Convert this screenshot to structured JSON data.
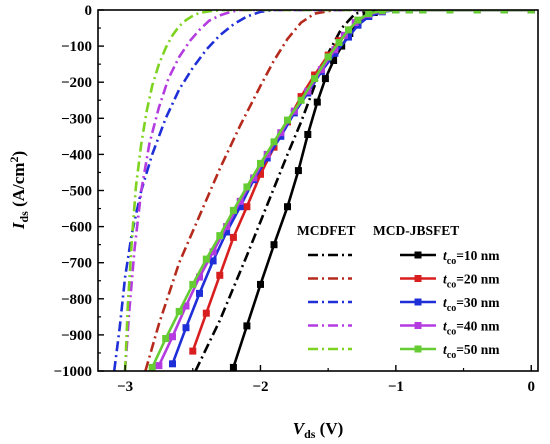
{
  "chart_data": {
    "type": "line",
    "xlabel": {
      "main": "V",
      "sub": "ds",
      "tail": " (V)"
    },
    "ylabel": {
      "main": "I",
      "sub": "ds",
      "tail": " (A/cm",
      "sup": "2",
      "close": ")"
    },
    "xlim": [
      -3.2,
      0.05
    ],
    "ylim": [
      -1000,
      0
    ],
    "xticks": [
      -3,
      -2,
      -1,
      0
    ],
    "xtick_labels": [
      "−3",
      "−2",
      "−1",
      "0"
    ],
    "yticks": [
      0,
      -100,
      -200,
      -300,
      -400,
      -500,
      -600,
      -700,
      -800,
      -900,
      -1000
    ],
    "ytick_labels": [
      "0",
      "−100",
      "−200",
      "−300",
      "−400",
      "−500",
      "−600",
      "−700",
      "−800",
      "−900",
      "−1000"
    ],
    "legend": {
      "col1_header": "MCDFET",
      "col2_header": "MCD-JBSFET",
      "placement": "bottom-right",
      "entries": [
        {
          "t": "t",
          "sub": "co",
          "rest": "=10 nm"
        },
        {
          "t": "t",
          "sub": "co",
          "rest": "=20 nm"
        },
        {
          "t": "t",
          "sub": "co",
          "rest": "=30 nm"
        },
        {
          "t": "t",
          "sub": "co",
          "rest": "=40 nm"
        },
        {
          "t": "t",
          "sub": "co",
          "rest": "=50 nm"
        }
      ]
    },
    "series": [
      {
        "group": "MCDFET",
        "style": "dashdot",
        "color": "#000000",
        "x": [
          -2.48,
          -2.3,
          -2.1,
          -1.95,
          -1.8,
          -1.7,
          -1.6,
          -1.5,
          -1.4,
          -1.3,
          -1.2,
          -1.1,
          0.0
        ],
        "y": [
          -1000,
          -860,
          -680,
          -540,
          -400,
          -310,
          -210,
          -120,
          -50,
          -10,
          -2,
          0,
          0
        ]
      },
      {
        "group": "MCDFET",
        "style": "dashdot",
        "color": "#b52a1c",
        "x": [
          -2.85,
          -2.75,
          -2.6,
          -2.45,
          -2.3,
          -2.15,
          -2.0,
          -1.9,
          -1.8,
          -1.7,
          -1.6,
          -1.45,
          0.0
        ],
        "y": [
          -1000,
          -870,
          -700,
          -570,
          -440,
          -320,
          -210,
          -140,
          -80,
          -35,
          -10,
          0,
          0
        ]
      },
      {
        "group": "MCDFET",
        "style": "dashdot",
        "color": "#1f2fd8",
        "x": [
          -3.08,
          -3.04,
          -3.0,
          -2.95,
          -2.88,
          -2.8,
          -2.7,
          -2.6,
          -2.5,
          -2.4,
          -2.3,
          -2.2,
          -2.1,
          -2.0,
          -1.9,
          0.0
        ],
        "y": [
          -1000,
          -880,
          -740,
          -620,
          -500,
          -400,
          -300,
          -220,
          -160,
          -110,
          -70,
          -40,
          -18,
          -5,
          0,
          0
        ]
      },
      {
        "group": "MCDFET",
        "style": "dashdot",
        "color": "#b43be0",
        "x": [
          -3.0,
          -2.97,
          -2.93,
          -2.88,
          -2.82,
          -2.75,
          -2.68,
          -2.6,
          -2.52,
          -2.45,
          -2.38,
          -2.3,
          -2.22,
          -2.15,
          0.0
        ],
        "y": [
          -1000,
          -840,
          -660,
          -500,
          -370,
          -270,
          -190,
          -130,
          -85,
          -55,
          -30,
          -15,
          -5,
          0,
          0
        ]
      },
      {
        "group": "MCDFET",
        "style": "dashdot",
        "color": "#7ed321",
        "x": [
          -3.0,
          -2.98,
          -2.95,
          -2.92,
          -2.88,
          -2.84,
          -2.8,
          -2.75,
          -2.7,
          -2.65,
          -2.6,
          -2.55,
          -2.5,
          -2.45,
          -2.35,
          -2.25,
          0.0
        ],
        "y": [
          -1000,
          -820,
          -640,
          -490,
          -370,
          -280,
          -210,
          -150,
          -105,
          -70,
          -45,
          -28,
          -16,
          -8,
          -2,
          0,
          0
        ]
      },
      {
        "group": "MCD-JBSFET",
        "style": "solid-square",
        "color": "#000000",
        "x": [
          -2.2,
          -2.1,
          -2.0,
          -1.9,
          -1.8,
          -1.72,
          -1.65,
          -1.58,
          -1.52,
          -1.46,
          -1.4,
          -1.34,
          -1.28,
          -1.22,
          -1.16,
          -1.1,
          -1.0,
          -0.9,
          -0.8,
          -0.6,
          -0.4,
          -0.2,
          0.0
        ],
        "y": [
          -990,
          -875,
          -760,
          -650,
          -545,
          -445,
          -345,
          -255,
          -190,
          -140,
          -100,
          -65,
          -38,
          -18,
          -7,
          -2,
          0,
          0,
          0,
          0,
          0,
          0,
          0
        ]
      },
      {
        "group": "MCD-JBSFET",
        "style": "solid-square",
        "color": "#d81e1e",
        "x": [
          -2.5,
          -2.4,
          -2.3,
          -2.2,
          -2.1,
          -2.0,
          -1.9,
          -1.8,
          -1.7,
          -1.6,
          -1.5,
          -1.42,
          -1.35,
          -1.28,
          -1.2,
          -1.1,
          -1.0,
          -0.9,
          -0.8,
          -0.6,
          -0.4,
          -0.2,
          0.0
        ],
        "y": [
          -945,
          -840,
          -735,
          -630,
          -545,
          -455,
          -380,
          -310,
          -240,
          -180,
          -125,
          -85,
          -55,
          -30,
          -12,
          -3,
          0,
          0,
          0,
          0,
          0,
          0,
          0
        ]
      },
      {
        "group": "MCD-JBSFET",
        "style": "solid-square",
        "color": "#1f2fd8",
        "x": [
          -2.65,
          -2.55,
          -2.45,
          -2.35,
          -2.25,
          -2.15,
          -2.05,
          -1.95,
          -1.85,
          -1.75,
          -1.65,
          -1.55,
          -1.45,
          -1.35,
          -1.28,
          -1.2,
          -1.1,
          -1.0,
          -0.9,
          -0.8,
          -0.6,
          -0.4,
          -0.2,
          0.0
        ],
        "y": [
          -980,
          -880,
          -785,
          -695,
          -615,
          -545,
          -470,
          -410,
          -350,
          -285,
          -230,
          -170,
          -120,
          -75,
          -42,
          -18,
          -5,
          0,
          0,
          0,
          0,
          0,
          0,
          0
        ]
      },
      {
        "group": "MCD-JBSFET",
        "style": "solid-square",
        "color": "#b43be0",
        "x": [
          -2.75,
          -2.65,
          -2.55,
          -2.45,
          -2.35,
          -2.25,
          -2.15,
          -2.05,
          -1.95,
          -1.85,
          -1.75,
          -1.65,
          -1.55,
          -1.45,
          -1.38,
          -1.3,
          -1.2,
          -1.1,
          -1.0,
          -0.9,
          -0.8,
          -0.6,
          -0.4,
          -0.2,
          0.0
        ],
        "y": [
          -985,
          -905,
          -820,
          -740,
          -670,
          -600,
          -530,
          -465,
          -400,
          -340,
          -280,
          -225,
          -165,
          -110,
          -70,
          -35,
          -12,
          -3,
          0,
          0,
          0,
          0,
          0,
          0,
          0
        ]
      },
      {
        "group": "MCD-JBSFET",
        "style": "solid-square",
        "color": "#66cc33",
        "x": [
          -2.8,
          -2.7,
          -2.6,
          -2.5,
          -2.4,
          -2.3,
          -2.2,
          -2.1,
          -2.0,
          -1.9,
          -1.8,
          -1.7,
          -1.6,
          -1.5,
          -1.42,
          -1.35,
          -1.28,
          -1.2,
          -1.1,
          -1.0,
          -0.9,
          -0.8,
          -0.6,
          -0.4,
          -0.2,
          0.0
        ],
        "y": [
          -990,
          -910,
          -835,
          -760,
          -690,
          -625,
          -555,
          -490,
          -425,
          -365,
          -305,
          -250,
          -190,
          -130,
          -90,
          -55,
          -28,
          -10,
          -2,
          0,
          0,
          0,
          0,
          0,
          0,
          0
        ]
      }
    ]
  }
}
